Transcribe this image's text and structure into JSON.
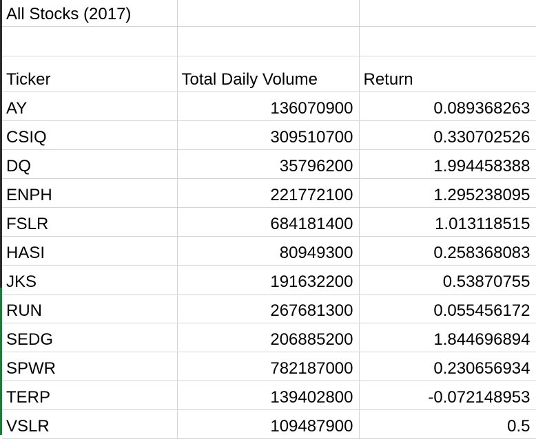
{
  "sheet": {
    "title": "All Stocks (2017)",
    "headers": {
      "ticker": "Ticker",
      "volume": "Total Daily Volume",
      "return": "Return"
    },
    "rows": [
      {
        "ticker": "AY",
        "volume": "136070900",
        "return": "0.089368263"
      },
      {
        "ticker": "CSIQ",
        "volume": "309510700",
        "return": "0.330702526"
      },
      {
        "ticker": "DQ",
        "volume": "35796200",
        "return": "1.994458388"
      },
      {
        "ticker": "ENPH",
        "volume": "221772100",
        "return": "1.295238095"
      },
      {
        "ticker": "FSLR",
        "volume": "684181400",
        "return": "1.013118515"
      },
      {
        "ticker": "HASI",
        "volume": "80949300",
        "return": "0.258368083"
      },
      {
        "ticker": "JKS",
        "volume": "191632200",
        "return": "0.53870755"
      },
      {
        "ticker": "RUN",
        "volume": "267681300",
        "return": "0.055456172"
      },
      {
        "ticker": "SEDG",
        "volume": "206885200",
        "return": "1.844696894"
      },
      {
        "ticker": "SPWR",
        "volume": "782187000",
        "return": "0.230656934"
      },
      {
        "ticker": "TERP",
        "volume": "139402800",
        "return": "-0.072148953"
      },
      {
        "ticker": "VSLR",
        "volume": "109487900",
        "return": "0.5"
      }
    ]
  }
}
